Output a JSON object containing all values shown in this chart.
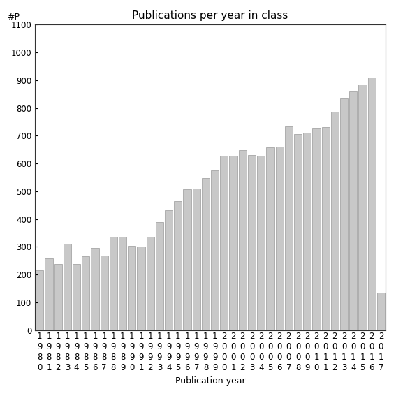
{
  "title": "Publications per year in class",
  "xlabel": "Publication year",
  "ylabel": "#P",
  "years": [
    "1980",
    "1981",
    "1982",
    "1983",
    "1984",
    "1985",
    "1986",
    "1987",
    "1988",
    "1989",
    "1990",
    "1991",
    "1992",
    "1993",
    "1994",
    "1995",
    "1996",
    "1997",
    "1998",
    "1999",
    "2000",
    "2001",
    "2002",
    "2003",
    "2004",
    "2005",
    "2006",
    "2007",
    "2008",
    "2009",
    "2010",
    "2011",
    "2012",
    "2013",
    "2014",
    "2015",
    "2016",
    "2017"
  ],
  "values": [
    215,
    258,
    238,
    311,
    238,
    267,
    297,
    268,
    336,
    335,
    303,
    300,
    335,
    390,
    432,
    465,
    507,
    510,
    548,
    576,
    628,
    628,
    648,
    630,
    628,
    657,
    660,
    733,
    706,
    711,
    729,
    731,
    786,
    835,
    860,
    885,
    909,
    135
  ],
  "bar_color": "#c8c8c8",
  "bar_edge_color": "#999999",
  "ylim": [
    0,
    1100
  ],
  "yticks": [
    0,
    100,
    200,
    300,
    400,
    500,
    600,
    700,
    800,
    900,
    1000,
    1100
  ],
  "bg_color": "#ffffff",
  "title_fontsize": 11,
  "axis_label_fontsize": 9,
  "tick_fontsize": 8.5
}
